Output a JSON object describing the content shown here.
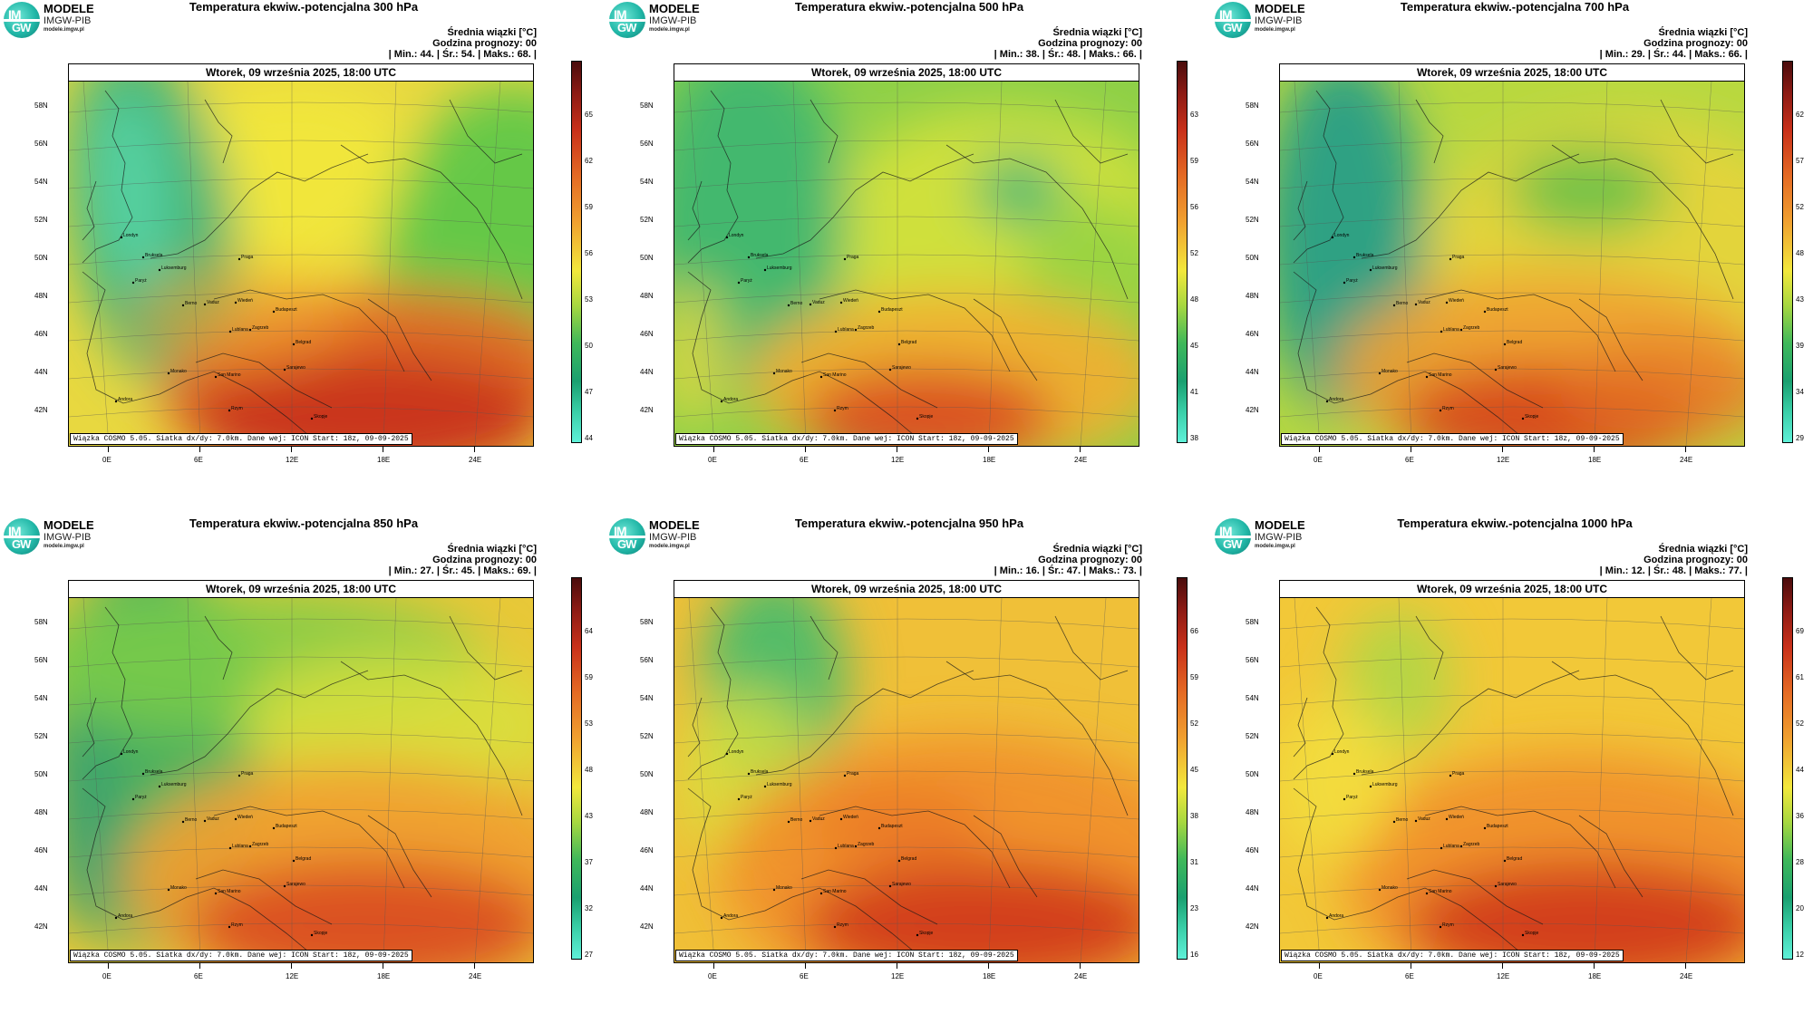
{
  "logo": {
    "icon": "imgw-logo-icon",
    "l1": "IM",
    "l2": "GW",
    "t1": "MODELE",
    "t2": "IMGW-PIB",
    "t3": "modele.imgw.pl"
  },
  "info_label": "Średnia wiązki [°C]",
  "forecast_hour": "Godzina prognozy: 00",
  "date": "Wtorek, 09 września 2025, 18:00 UTC",
  "credit": "Wiązka COSMO 5.05. Siatka dx/dy: 7.0km. Dane wej: ICON Start: 18z, 09-09-2025",
  "lat_labels": [
    "58N",
    "56N",
    "54N",
    "52N",
    "50N",
    "48N",
    "46N",
    "44N",
    "42N"
  ],
  "lon_labels": [
    "0E",
    "6E",
    "12E",
    "18E",
    "24E"
  ],
  "cities": [
    "Londyn",
    "Bruksela",
    "Paryż",
    "Luksemburg",
    "Praga",
    "Berno",
    "Vaduz",
    "Wiedeń",
    "Budapeszt",
    "Zagrzeb",
    "Lublana",
    "Belgrad",
    "San Marino",
    "Sarajewo",
    "Monako",
    "Andora",
    "Rzym",
    "Skopje"
  ],
  "colors": {
    "low": "#4ee6c8",
    "mid_green": "#3fb85a",
    "yellow": "#f2e83c",
    "orange": "#f0a030",
    "red": "#d23c1c",
    "dark_red": "#5a1010"
  },
  "panels": [
    {
      "title": "Temperatura ekwiw.-potencjalna 300 hPa",
      "min": "44.",
      "avg": "54.",
      "max": "68.",
      "colorbar": [
        "65",
        "62",
        "59",
        "56",
        "53",
        "50",
        "47",
        "44"
      ],
      "scheme": "300"
    },
    {
      "title": "Temperatura ekwiw.-potencjalna 500 hPa",
      "min": "38.",
      "avg": "48.",
      "max": "66.",
      "colorbar": [
        "63",
        "59",
        "56",
        "52",
        "48",
        "45",
        "41",
        "38"
      ],
      "scheme": "500"
    },
    {
      "title": "Temperatura ekwiw.-potencjalna 700 hPa",
      "min": "29.",
      "avg": "44.",
      "max": "66.",
      "colorbar": [
        "62",
        "57",
        "52",
        "48",
        "43",
        "39",
        "34",
        "29"
      ],
      "scheme": "700"
    },
    {
      "title": "Temperatura ekwiw.-potencjalna 850 hPa",
      "min": "27.",
      "avg": "45.",
      "max": "69.",
      "colorbar": [
        "64",
        "59",
        "53",
        "48",
        "43",
        "37",
        "32",
        "27"
      ],
      "scheme": "850"
    },
    {
      "title": "Temperatura ekwiw.-potencjalna 950 hPa",
      "min": "16.",
      "avg": "47.",
      "max": "73.",
      "colorbar": [
        "66",
        "59",
        "52",
        "45",
        "38",
        "31",
        "23",
        "16"
      ],
      "scheme": "950"
    },
    {
      "title": "Temperatura ekwiw.-potencjalna 1000 hPa",
      "min": "12.",
      "avg": "48.",
      "max": "77.",
      "colorbar": [
        "69",
        "61",
        "52",
        "44",
        "36",
        "28",
        "20",
        "12"
      ],
      "scheme": "1000"
    }
  ]
}
